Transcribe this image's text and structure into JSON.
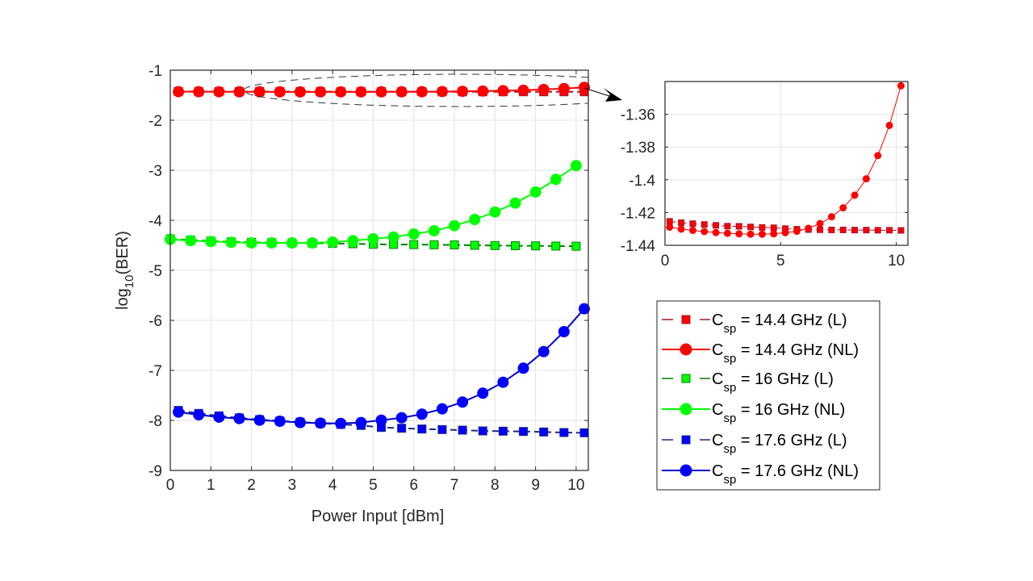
{
  "chart_data": [
    {
      "type": "line",
      "name": "main",
      "title": "",
      "xlabel": "Power Input [dBm]",
      "ylabel": "log10(BER)",
      "ylabel_parts": {
        "base": "log",
        "sub": "10",
        "rest": "(BER)"
      },
      "xlim": [
        0,
        10.3
      ],
      "ylim": [
        -9,
        -1
      ],
      "xticks": [
        0,
        1,
        2,
        3,
        4,
        5,
        6,
        7,
        8,
        9,
        10
      ],
      "yticks": [
        -1,
        -2,
        -3,
        -4,
        -5,
        -6,
        -7,
        -8,
        -9
      ],
      "grid": true,
      "series": [
        {
          "name": "Csp = 14.4 GHz (L)",
          "color": "#ff0000",
          "edge": "#a2142f",
          "line_color": "#a2142f",
          "style": "dashed",
          "marker": "square",
          "x": [
            0.2,
            0.7,
            1.2,
            1.7,
            2.2,
            2.7,
            3.2,
            3.7,
            4.2,
            4.7,
            5.2,
            5.7,
            6.2,
            6.7,
            7.2,
            7.7,
            8.2,
            8.7,
            9.2,
            9.7,
            10.2
          ],
          "y": [
            -1.4254,
            -1.4262,
            -1.4268,
            -1.4273,
            -1.4278,
            -1.4283,
            -1.4284,
            -1.4288,
            -1.4291,
            -1.4293,
            -1.4298,
            -1.4302,
            -1.4304,
            -1.4305,
            -1.4306,
            -1.4306,
            -1.4307,
            -1.4307,
            -1.4308,
            -1.4308,
            -1.4309
          ]
        },
        {
          "name": "Csp = 14.4 GHz (NL)",
          "color": "#ff0000",
          "edge": "#ff0000",
          "line_color": "#ff0000",
          "style": "solid",
          "marker": "circle",
          "x": [
            0.2,
            0.7,
            1.2,
            1.7,
            2.2,
            2.7,
            3.2,
            3.7,
            4.2,
            4.7,
            5.2,
            5.7,
            6.2,
            6.7,
            7.2,
            7.7,
            8.2,
            8.7,
            9.2,
            9.7,
            10.2
          ],
          "y": [
            -1.4289,
            -1.4301,
            -1.4309,
            -1.4316,
            -1.4322,
            -1.4327,
            -1.433,
            -1.4332,
            -1.4332,
            -1.433,
            -1.4323,
            -1.4314,
            -1.4296,
            -1.4267,
            -1.4226,
            -1.4171,
            -1.4094,
            -1.3994,
            -1.3852,
            -1.3668,
            -1.3426
          ]
        },
        {
          "name": "Csp = 16 GHz (L)",
          "color": "#00ff00",
          "edge": "#008000",
          "line_color": "#008000",
          "style": "dashed",
          "marker": "square",
          "x": [
            0,
            0.5,
            1,
            1.5,
            2,
            2.5,
            3,
            3.5,
            4,
            4.5,
            5,
            5.5,
            6,
            6.5,
            7,
            7.5,
            8,
            8.5,
            9,
            9.5,
            10
          ],
          "y": [
            -4.37,
            -4.395,
            -4.415,
            -4.43,
            -4.44,
            -4.447,
            -4.452,
            -4.457,
            -4.462,
            -4.468,
            -4.479,
            -4.482,
            -4.485,
            -4.489,
            -4.492,
            -4.5,
            -4.505,
            -4.508,
            -4.511,
            -4.515,
            -4.518
          ]
        },
        {
          "name": "Csp = 16 GHz (NL)",
          "color": "#00ff00",
          "edge": "#00ff00",
          "line_color": "#00ff00",
          "style": "solid",
          "marker": "circle",
          "x": [
            0,
            0.5,
            1,
            1.5,
            2,
            2.5,
            3,
            3.5,
            4,
            4.5,
            5,
            5.5,
            6,
            6.5,
            7,
            7.5,
            8,
            8.5,
            9,
            9.5,
            10
          ],
          "y": [
            -4.382,
            -4.408,
            -4.424,
            -4.44,
            -4.452,
            -4.452,
            -4.452,
            -4.452,
            -4.435,
            -4.408,
            -4.37,
            -4.334,
            -4.274,
            -4.21,
            -4.108,
            -3.984,
            -3.834,
            -3.656,
            -3.435,
            -3.182,
            -2.908
          ]
        },
        {
          "name": "Csp = 17.6 GHz (L)",
          "color": "#0000ff",
          "edge": "#1a2a80",
          "line_color": "#1a2a80",
          "style": "dashed",
          "marker": "square",
          "x": [
            0.2,
            0.7,
            1.2,
            1.7,
            2.2,
            2.7,
            3.2,
            3.7,
            4.2,
            4.7,
            5.2,
            5.7,
            6.2,
            6.7,
            7.2,
            7.7,
            8.2,
            8.7,
            9.2,
            9.7,
            10.2
          ],
          "y": [
            -7.8,
            -7.86,
            -7.91,
            -7.95,
            -7.985,
            -8.01,
            -8.035,
            -8.055,
            -8.08,
            -8.1,
            -8.14,
            -8.156,
            -8.172,
            -8.183,
            -8.194,
            -8.21,
            -8.215,
            -8.221,
            -8.231,
            -8.242,
            -8.247
          ]
        },
        {
          "name": "Csp = 17.6 GHz (NL)",
          "color": "#0000ff",
          "edge": "#0000ff",
          "line_color": "#0000cc",
          "style": "solid",
          "marker": "circle",
          "x": [
            0.2,
            0.7,
            1.2,
            1.7,
            2.2,
            2.7,
            3.2,
            3.7,
            4.2,
            4.7,
            5.2,
            5.7,
            6.2,
            6.7,
            7.2,
            7.7,
            8.2,
            8.7,
            9.2,
            9.7,
            10.2
          ],
          "y": [
            -7.834,
            -7.887,
            -7.935,
            -7.963,
            -7.995,
            -8.016,
            -8.043,
            -8.054,
            -8.06,
            -8.043,
            -7.995,
            -7.947,
            -7.876,
            -7.769,
            -7.634,
            -7.456,
            -7.237,
            -6.956,
            -6.624,
            -6.226,
            -5.769
          ]
        }
      ],
      "annotation": "dashed ellipse around 14.4 GHz curves with arrow to zoomed inset"
    },
    {
      "type": "line",
      "name": "inset",
      "title": "",
      "xlim": [
        0,
        10.5
      ],
      "ylim": [
        -1.44,
        -1.34
      ],
      "xticks": [
        0,
        5,
        10
      ],
      "yticks": [
        -1.36,
        -1.38,
        -1.4,
        -1.42,
        -1.44
      ],
      "ytick_labels": [
        "-1.36",
        "-1.38",
        "-1.4",
        "-1.42",
        "-1.44"
      ],
      "grid": true,
      "series_ref": [
        "Csp = 14.4 GHz (L)",
        "Csp = 14.4 GHz (NL)"
      ]
    }
  ],
  "legend": {
    "placement": "lower-right",
    "items": [
      {
        "symbol": "C",
        "sub": "sp",
        "text": " = 14.4 GHz (L)"
      },
      {
        "symbol": "C",
        "sub": "sp",
        "text": " = 14.4 GHz (NL)"
      },
      {
        "symbol": "C",
        "sub": "sp",
        "text": " = 16 GHz (L)"
      },
      {
        "symbol": "C",
        "sub": "sp",
        "text": " = 16 GHz (NL)"
      },
      {
        "symbol": "C",
        "sub": "sp",
        "text": " = 17.6 GHz (L)"
      },
      {
        "symbol": "C",
        "sub": "sp",
        "text": " = 17.6 GHz (NL)"
      }
    ]
  }
}
